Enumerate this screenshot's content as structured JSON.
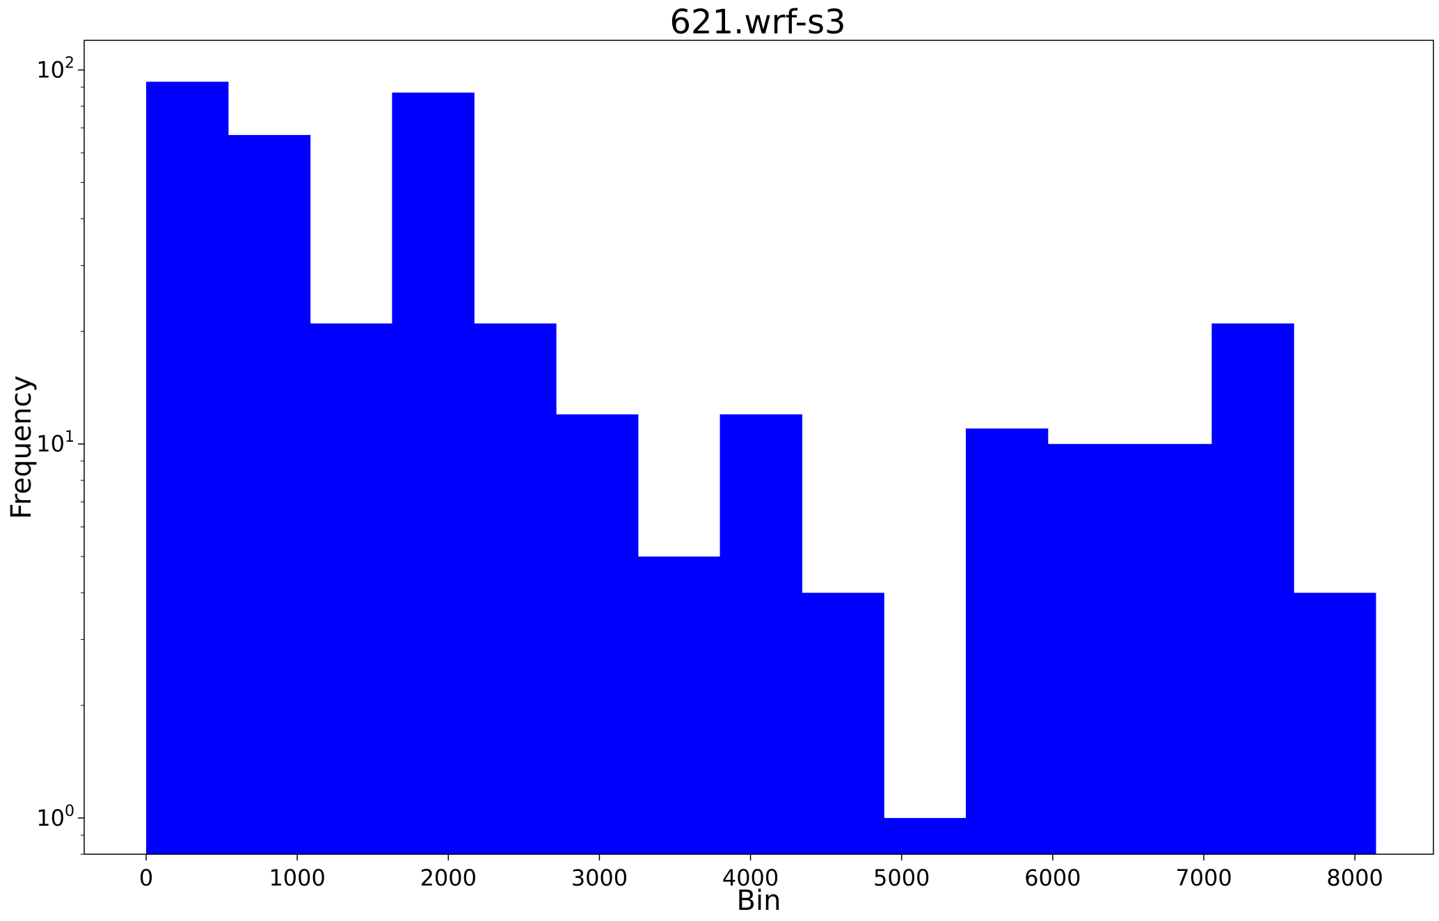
{
  "chart_data": {
    "type": "bar",
    "title": "621.wrf-s3",
    "xlabel": "Bin",
    "ylabel": "Frequency",
    "y_scale": "log",
    "ylim": [
      0.8,
      120
    ],
    "xlim": [
      -410,
      8520
    ],
    "bar_color": "#0000ff",
    "bin_edges": [
      0,
      542.5,
      1085,
      1627.5,
      2170,
      2712.5,
      3255,
      3797.5,
      4340,
      4882.5,
      5425,
      5967.5,
      6510,
      7052.5,
      7595,
      8137.5
    ],
    "values": [
      93,
      67,
      21,
      87,
      21,
      12,
      5,
      12,
      4,
      1,
      11,
      10,
      10,
      21,
      4
    ],
    "x_ticks": [
      0,
      1000,
      2000,
      3000,
      4000,
      5000,
      6000,
      7000,
      8000
    ],
    "x_tick_labels": [
      "0",
      "1000",
      "2000",
      "3000",
      "4000",
      "5000",
      "6000",
      "7000",
      "8000"
    ],
    "y_major_ticks": [
      1,
      10,
      100
    ],
    "y_tick_labels": [
      {
        "base": "10",
        "exp": "0"
      },
      {
        "base": "10",
        "exp": "1"
      },
      {
        "base": "10",
        "exp": "2"
      }
    ],
    "grid": false,
    "legend": "none"
  }
}
